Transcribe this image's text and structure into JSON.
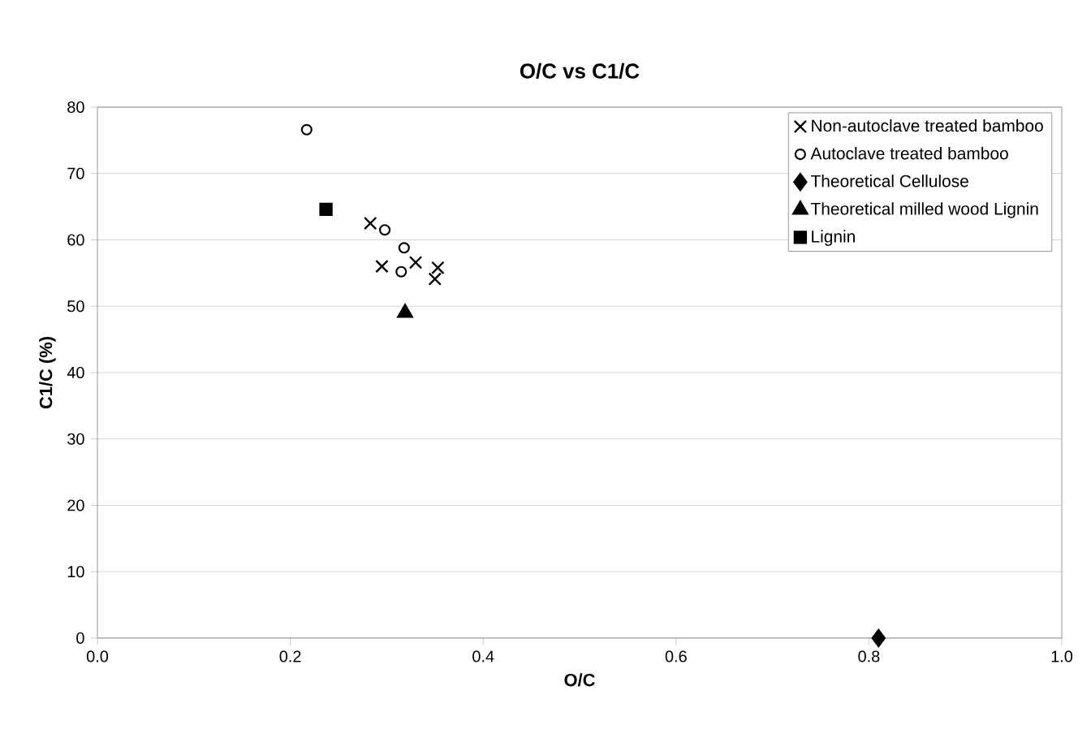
{
  "chart_data": {
    "type": "scatter",
    "title": "O/C vs C1/C",
    "xlabel": "O/C",
    "ylabel": "C1/C (%)",
    "xlim": [
      0,
      1
    ],
    "xticks": [
      {
        "value": 0,
        "label": "0.0"
      },
      0.2,
      0.4,
      0.6,
      0.8,
      {
        "value": 1,
        "label": "1.0"
      }
    ],
    "ylim": [
      0,
      80
    ],
    "yticks": [
      0,
      10,
      20,
      30,
      40,
      50,
      60,
      70,
      80
    ],
    "grid": "y",
    "legend": "top right",
    "series": [
      {
        "name": "Non-autoclave treated bamboo",
        "color": "#000000",
        "marker": "cross",
        "x": [
          0.283,
          0.295,
          0.33,
          0.353,
          0.35
        ],
        "values": [
          62.5,
          56.0,
          56.6,
          55.8,
          54.1
        ]
      },
      {
        "name": "Autoclave treated bamboo",
        "color": "#000000",
        "marker": "circle",
        "x": [
          0.217,
          0.298,
          0.318,
          0.315
        ],
        "values": [
          76.6,
          61.5,
          58.8,
          55.2
        ]
      },
      {
        "name": "Theoretical Cellulose",
        "color": "#000000",
        "marker": "diamond",
        "x": [
          0.81
        ],
        "values": [
          0
        ]
      },
      {
        "name": "Theoretical milled wood Lignin",
        "color": "#000000",
        "marker": "triangle",
        "x": [
          0.319
        ],
        "values": [
          49
        ]
      },
      {
        "name": "Lignin",
        "color": "#000000",
        "marker": "square",
        "x": [
          0.237
        ],
        "values": [
          64.6
        ]
      }
    ]
  }
}
